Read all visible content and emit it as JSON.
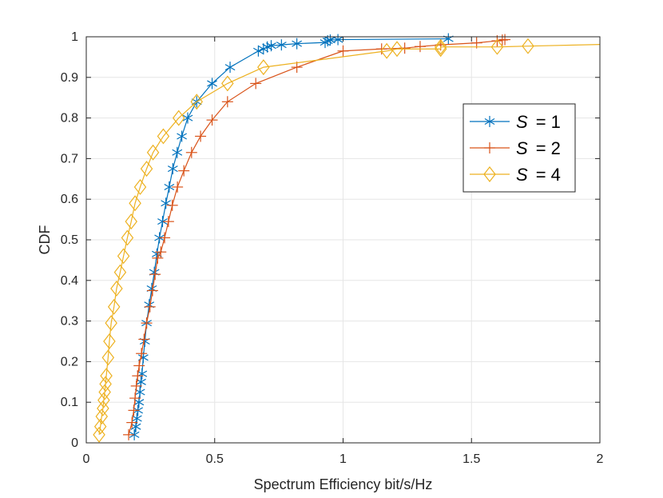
{
  "chart_data": {
    "type": "line",
    "title": "",
    "xlabel": "Spectrum Efficiency bit/s/Hz",
    "ylabel": "CDF",
    "xlim": [
      0,
      2
    ],
    "ylim": [
      0,
      1
    ],
    "grid": true,
    "legend_position": "right",
    "x_ticks": [
      0,
      0.5,
      1,
      1.5,
      2
    ],
    "x_tick_labels": [
      "0",
      "0.5",
      "1",
      "1.5",
      "2"
    ],
    "y_ticks": [
      0,
      0.1,
      0.2,
      0.3,
      0.4,
      0.5,
      0.6,
      0.7,
      0.8,
      0.9,
      1
    ],
    "y_tick_labels": [
      "0",
      "0.1",
      "0.2",
      "0.3",
      "0.4",
      "0.5",
      "0.6",
      "0.7",
      "0.8",
      "0.9",
      "1"
    ],
    "series": [
      {
        "name": "S = 1",
        "legend_symbol": "S",
        "legend_value": "= 1",
        "color": "#0072BD",
        "marker": "asterisk",
        "points": [
          [
            0.187,
            0.02
          ],
          [
            0.193,
            0.04
          ],
          [
            0.197,
            0.06
          ],
          [
            0.201,
            0.08
          ],
          [
            0.205,
            0.1
          ],
          [
            0.209,
            0.125
          ],
          [
            0.213,
            0.15
          ],
          [
            0.217,
            0.17
          ],
          [
            0.222,
            0.21
          ],
          [
            0.228,
            0.25
          ],
          [
            0.235,
            0.295
          ],
          [
            0.245,
            0.34
          ],
          [
            0.255,
            0.38
          ],
          [
            0.265,
            0.42
          ],
          [
            0.275,
            0.465
          ],
          [
            0.285,
            0.505
          ],
          [
            0.297,
            0.545
          ],
          [
            0.31,
            0.59
          ],
          [
            0.323,
            0.63
          ],
          [
            0.337,
            0.675
          ],
          [
            0.354,
            0.715
          ],
          [
            0.372,
            0.755
          ],
          [
            0.395,
            0.8
          ],
          [
            0.43,
            0.84
          ],
          [
            0.49,
            0.885
          ],
          [
            0.56,
            0.925
          ],
          [
            0.67,
            0.965
          ],
          [
            0.69,
            0.97
          ],
          [
            0.705,
            0.975
          ],
          [
            0.72,
            0.978
          ],
          [
            0.76,
            0.98
          ],
          [
            0.82,
            0.983
          ],
          [
            0.93,
            0.986
          ],
          [
            0.94,
            0.99
          ],
          [
            0.95,
            0.992
          ],
          [
            0.98,
            0.993
          ],
          [
            1.41,
            0.995
          ]
        ]
      },
      {
        "name": "S = 2",
        "legend_symbol": "S",
        "legend_value": "= 2",
        "color": "#D95319",
        "marker": "plus",
        "points": [
          [
            0.165,
            0.02
          ],
          [
            0.178,
            0.05
          ],
          [
            0.185,
            0.08
          ],
          [
            0.19,
            0.11
          ],
          [
            0.195,
            0.14
          ],
          [
            0.2,
            0.165
          ],
          [
            0.206,
            0.19
          ],
          [
            0.215,
            0.22
          ],
          [
            0.225,
            0.255
          ],
          [
            0.235,
            0.295
          ],
          [
            0.248,
            0.335
          ],
          [
            0.258,
            0.375
          ],
          [
            0.268,
            0.415
          ],
          [
            0.278,
            0.455
          ],
          [
            0.29,
            0.47
          ],
          [
            0.305,
            0.505
          ],
          [
            0.32,
            0.545
          ],
          [
            0.335,
            0.585
          ],
          [
            0.355,
            0.63
          ],
          [
            0.38,
            0.67
          ],
          [
            0.41,
            0.715
          ],
          [
            0.445,
            0.755
          ],
          [
            0.49,
            0.795
          ],
          [
            0.55,
            0.84
          ],
          [
            0.66,
            0.885
          ],
          [
            0.82,
            0.925
          ],
          [
            1.0,
            0.965
          ],
          [
            1.15,
            0.97
          ],
          [
            1.24,
            0.972
          ],
          [
            1.3,
            0.976
          ],
          [
            1.38,
            0.98
          ],
          [
            1.52,
            0.985
          ],
          [
            1.6,
            0.99
          ],
          [
            1.62,
            0.992
          ],
          [
            1.63,
            0.993
          ]
        ]
      },
      {
        "name": "S = 4",
        "legend_symbol": "S",
        "legend_value": "= 4",
        "color": "#EDB120",
        "marker": "diamond",
        "points": [
          [
            0.05,
            0.02
          ],
          [
            0.055,
            0.04
          ],
          [
            0.06,
            0.065
          ],
          [
            0.065,
            0.085
          ],
          [
            0.068,
            0.105
          ],
          [
            0.072,
            0.125
          ],
          [
            0.075,
            0.145
          ],
          [
            0.078,
            0.165
          ],
          [
            0.085,
            0.21
          ],
          [
            0.09,
            0.25
          ],
          [
            0.097,
            0.295
          ],
          [
            0.108,
            0.335
          ],
          [
            0.118,
            0.38
          ],
          [
            0.132,
            0.42
          ],
          [
            0.145,
            0.46
          ],
          [
            0.16,
            0.505
          ],
          [
            0.175,
            0.545
          ],
          [
            0.19,
            0.59
          ],
          [
            0.21,
            0.63
          ],
          [
            0.235,
            0.675
          ],
          [
            0.26,
            0.715
          ],
          [
            0.3,
            0.755
          ],
          [
            0.36,
            0.8
          ],
          [
            0.43,
            0.84
          ],
          [
            0.55,
            0.885
          ],
          [
            0.69,
            0.925
          ],
          [
            1.17,
            0.965
          ],
          [
            1.21,
            0.97
          ],
          [
            1.38,
            0.97
          ],
          [
            1.38,
            0.975
          ],
          [
            1.6,
            0.975
          ],
          [
            1.72,
            0.977
          ],
          [
            2.0,
            0.981
          ]
        ]
      }
    ]
  }
}
